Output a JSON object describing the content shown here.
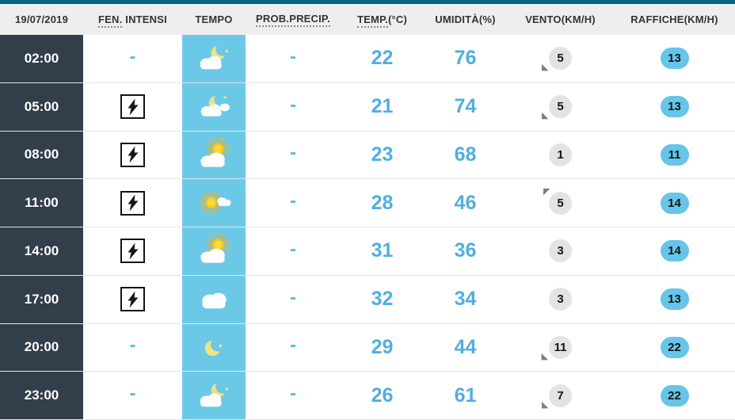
{
  "header": {
    "date": "19/07/2019",
    "columns": {
      "fen_abbr": "FEN.",
      "fen_rest": " INTENSI",
      "tempo": "TEMPO",
      "prob": "PROB.PRECIP.",
      "temp_abbr": "TEMP.",
      "temp_unit": "(°C)",
      "humidity": "UMIDITÀ(%)",
      "wind": "VENTO(KM/H)",
      "gusts": "RAFFICHE(KM/H)"
    }
  },
  "colors": {
    "topbar_teal": "#0a657f",
    "time_column_bg": "#333e4b",
    "tempo_column_bg": "#6bc9e7",
    "value_blue": "#51aede",
    "gust_pill_bg": "#66c5e8",
    "wind_circle_bg": "#e3e3e3",
    "header_bg": "#eeeeee"
  },
  "rows": [
    {
      "time": "02:00",
      "fen": "-",
      "fen_icon": "none",
      "tempo_icon": "night-partly-cloudy",
      "prob": "-",
      "temp": "22",
      "humidity": "76",
      "wind": "5",
      "wind_arrow": "wind-arrow-down-left",
      "gusts": "13"
    },
    {
      "time": "05:00",
      "fen_icon": "lightning",
      "tempo_icon": "night-moon-cloud",
      "prob": "-",
      "temp": "21",
      "humidity": "74",
      "wind": "5",
      "wind_arrow": "wind-arrow-down-left",
      "gusts": "13"
    },
    {
      "time": "08:00",
      "fen_icon": "lightning",
      "tempo_icon": "sun-behind-cloud",
      "prob": "-",
      "temp": "23",
      "humidity": "68",
      "wind": "1",
      "wind_arrow": "none",
      "gusts": "11"
    },
    {
      "time": "11:00",
      "fen_icon": "lightning",
      "tempo_icon": "sun-small-cloud",
      "prob": "-",
      "temp": "28",
      "humidity": "46",
      "wind": "5",
      "wind_arrow": "wind-arrow-up-left",
      "gusts": "14"
    },
    {
      "time": "14:00",
      "fen_icon": "lightning",
      "tempo_icon": "sun-behind-cloud",
      "prob": "-",
      "temp": "31",
      "humidity": "36",
      "wind": "3",
      "wind_arrow": "none",
      "gusts": "14"
    },
    {
      "time": "17:00",
      "fen_icon": "lightning",
      "tempo_icon": "cloudy",
      "prob": "-",
      "temp": "32",
      "humidity": "34",
      "wind": "3",
      "wind_arrow": "none",
      "gusts": "13"
    },
    {
      "time": "20:00",
      "fen": "-",
      "fen_icon": "none",
      "tempo_icon": "clear-night-moon",
      "prob": "-",
      "temp": "29",
      "humidity": "44",
      "wind": "11",
      "wind_arrow": "wind-arrow-down-left",
      "gusts": "22"
    },
    {
      "time": "23:00",
      "fen": "-",
      "fen_icon": "none",
      "tempo_icon": "night-partly-cloudy",
      "prob": "-",
      "temp": "26",
      "humidity": "61",
      "wind": "7",
      "wind_arrow": "wind-arrow-down-left",
      "gusts": "22"
    }
  ]
}
